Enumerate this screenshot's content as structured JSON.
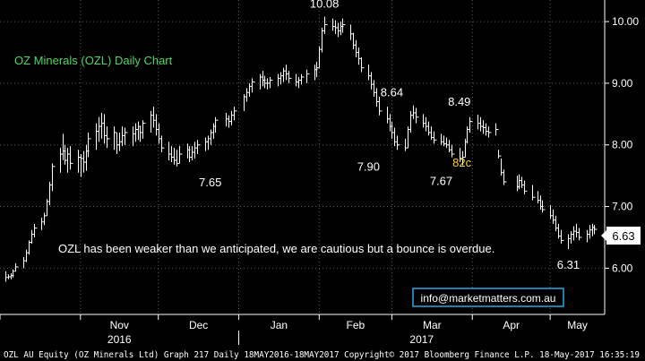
{
  "chart_data": {
    "type": "ohlc",
    "title": "OZ Minerals (OZL) Daily Chart",
    "annotation": "OZL has been weaker than we anticipated, we are cautious but a bounce is overdue.",
    "contact": "info@marketmatters.com.au",
    "footer": "OZL AU Equity (OZ Minerals Ltd) Graph 217  Daily 18MAY2016-18MAY2017 Copyright© 2017 Bloomberg Finance L.P. 18-May-2017 16:35:19",
    "last_price_label": "6.63",
    "ylim": [
      5.25,
      10.35
    ],
    "y_ticks": [
      6.0,
      7.0,
      8.0,
      9.0,
      10.0
    ],
    "y_tick_labels": [
      "6.00",
      "7.00",
      "8.00",
      "9.00",
      "10.00"
    ],
    "x_month_labels": [
      "Nov",
      "Dec",
      "Jan",
      "Feb",
      "Mar",
      "Apr",
      "May"
    ],
    "x_month_starts": [
      "2016-11-01",
      "2016-12-01",
      "2017-01-01",
      "2017-02-01",
      "2017-03-01",
      "2017-04-01",
      "2017-05-01"
    ],
    "x_year_labels": [
      "2016",
      "2017"
    ],
    "x_range": [
      "2016-10-01",
      "2017-05-22"
    ],
    "grid": true,
    "colors": {
      "bars": "#ffffff",
      "axis": "#ffffff",
      "title": "#4ed860",
      "gap_label": "#ffd21f",
      "price_box": "#ffffff",
      "contact_box": "#2aa8e0"
    },
    "price_labels": [
      {
        "text": "10.08",
        "date": "2017-02-03",
        "value": 10.08,
        "position": "above"
      },
      {
        "text": "8.64",
        "date": "2017-03-01",
        "value": 8.64,
        "position": "above"
      },
      {
        "text": "8.49",
        "date": "2017-03-27",
        "value": 8.49,
        "position": "above"
      },
      {
        "text": "7.65",
        "date": "2016-12-21",
        "value": 7.65,
        "position": "below"
      },
      {
        "text": "7.90",
        "date": "2017-02-20",
        "value": 7.9,
        "position": "below"
      },
      {
        "text": "7.67",
        "date": "2017-03-20",
        "value": 7.67,
        "position": "below"
      },
      {
        "text": "6.31",
        "date": "2017-05-08",
        "value": 6.31,
        "position": "below"
      },
      {
        "text": "82c",
        "date": "2017-03-28",
        "value": 7.72,
        "position": "gap"
      }
    ],
    "series": [
      {
        "values": [
          [
            "2016-10-03",
            5.78,
            5.95,
            5.85
          ],
          [
            "2016-10-04",
            5.82,
            5.9,
            5.86
          ],
          [
            "2016-10-05",
            5.82,
            5.92,
            5.88
          ],
          [
            "2016-10-06",
            5.85,
            5.98,
            5.95
          ],
          [
            "2016-10-07",
            5.95,
            6.08,
            6.02
          ],
          [
            "2016-10-10",
            6.0,
            6.18,
            6.12
          ],
          [
            "2016-10-11",
            6.1,
            6.3,
            6.25
          ],
          [
            "2016-10-12",
            6.22,
            6.45,
            6.42
          ],
          [
            "2016-10-13",
            6.4,
            6.62,
            6.55
          ],
          [
            "2016-10-14",
            6.5,
            6.72,
            6.65
          ],
          [
            "2016-10-17",
            6.62,
            6.82,
            6.75
          ],
          [
            "2016-10-18",
            6.7,
            6.9,
            6.85
          ],
          [
            "2016-10-19",
            6.85,
            7.12,
            7.08
          ],
          [
            "2016-10-20",
            7.02,
            7.4,
            7.35
          ],
          [
            "2016-10-21",
            7.25,
            7.7,
            7.65
          ],
          [
            "2016-10-24",
            7.55,
            7.95,
            7.85
          ],
          [
            "2016-10-25",
            7.75,
            8.18,
            7.9
          ],
          [
            "2016-10-26",
            7.68,
            8.0,
            7.75
          ],
          [
            "2016-10-27",
            7.55,
            7.95,
            7.85
          ],
          [
            "2016-10-28",
            7.6,
            7.98,
            7.7
          ],
          [
            "2016-10-31",
            7.55,
            7.92,
            7.8
          ],
          [
            "2016-11-01",
            7.48,
            7.85,
            7.78
          ],
          [
            "2016-11-02",
            7.55,
            7.9,
            7.72
          ],
          [
            "2016-11-03",
            7.58,
            8.0,
            7.9
          ],
          [
            "2016-11-04",
            7.8,
            8.2,
            8.1
          ],
          [
            "2016-11-07",
            7.92,
            8.35,
            8.22
          ],
          [
            "2016-11-08",
            8.05,
            8.45,
            8.3
          ],
          [
            "2016-11-09",
            8.1,
            8.52,
            8.35
          ],
          [
            "2016-11-10",
            8.02,
            8.5,
            8.15
          ],
          [
            "2016-11-11",
            7.95,
            8.3,
            8.1
          ],
          [
            "2016-11-14",
            7.92,
            8.3,
            8.2
          ],
          [
            "2016-11-15",
            7.85,
            8.2,
            8.0
          ],
          [
            "2016-11-16",
            7.9,
            8.2,
            8.05
          ],
          [
            "2016-11-17",
            7.98,
            8.3,
            8.15
          ],
          [
            "2016-11-18",
            8.0,
            8.28,
            8.2
          ],
          [
            "2016-11-21",
            7.98,
            8.3,
            8.18
          ],
          [
            "2016-11-22",
            8.05,
            8.35,
            8.25
          ],
          [
            "2016-11-23",
            8.08,
            8.38,
            8.3
          ],
          [
            "2016-11-24",
            8.05,
            8.3,
            8.2
          ],
          [
            "2016-11-25",
            8.1,
            8.4,
            8.35
          ],
          [
            "2016-11-28",
            8.2,
            8.55,
            8.48
          ],
          [
            "2016-11-29",
            8.28,
            8.62,
            8.4
          ],
          [
            "2016-11-30",
            8.15,
            8.5,
            8.25
          ],
          [
            "2016-12-01",
            8.02,
            8.35,
            8.1
          ],
          [
            "2016-12-02",
            7.88,
            8.15,
            7.95
          ],
          [
            "2016-12-05",
            7.75,
            8.05,
            7.85
          ],
          [
            "2016-12-06",
            7.72,
            7.98,
            7.8
          ],
          [
            "2016-12-07",
            7.68,
            7.95,
            7.75
          ],
          [
            "2016-12-08",
            7.65,
            7.92,
            7.7
          ],
          [
            "2016-12-09",
            7.7,
            7.98,
            7.85
          ],
          [
            "2016-12-12",
            7.78,
            8.02,
            7.92
          ],
          [
            "2016-12-13",
            7.72,
            7.98,
            7.8
          ],
          [
            "2016-12-14",
            7.75,
            7.98,
            7.88
          ],
          [
            "2016-12-15",
            7.78,
            8.05,
            7.95
          ],
          [
            "2016-12-16",
            7.85,
            8.08,
            8.0
          ],
          [
            "2016-12-19",
            7.9,
            8.12,
            8.05
          ],
          [
            "2016-12-20",
            7.92,
            8.15,
            8.1
          ],
          [
            "2016-12-21",
            8.0,
            8.25,
            8.2
          ],
          [
            "2016-12-22",
            8.1,
            8.35,
            8.3
          ],
          [
            "2016-12-23",
            8.2,
            8.45,
            8.4
          ],
          [
            "2016-12-27",
            8.3,
            8.52,
            8.42
          ],
          [
            "2016-12-28",
            8.28,
            8.48,
            8.38
          ],
          [
            "2016-12-29",
            8.32,
            8.55,
            8.48
          ],
          [
            "2016-12-30",
            8.4,
            8.62,
            8.55
          ],
          [
            "2017-01-03",
            8.55,
            8.82,
            8.78
          ],
          [
            "2017-01-04",
            8.7,
            8.92,
            8.85
          ],
          [
            "2017-01-05",
            8.78,
            9.0,
            8.95
          ],
          [
            "2017-01-06",
            8.85,
            9.08,
            9.02
          ],
          [
            "2017-01-09",
            8.9,
            9.15,
            9.1
          ],
          [
            "2017-01-10",
            8.95,
            9.2,
            9.05
          ],
          [
            "2017-01-11",
            8.92,
            9.12,
            9.0
          ],
          [
            "2017-01-12",
            8.9,
            9.08,
            9.0
          ],
          [
            "2017-01-13",
            8.92,
            9.1,
            9.05
          ],
          [
            "2017-01-16",
            8.95,
            9.15,
            9.08
          ],
          [
            "2017-01-17",
            8.98,
            9.18,
            9.12
          ],
          [
            "2017-01-18",
            9.02,
            9.25,
            9.2
          ],
          [
            "2017-01-19",
            9.05,
            9.3,
            9.15
          ],
          [
            "2017-01-20",
            9.0,
            9.2,
            9.08
          ],
          [
            "2017-01-23",
            8.95,
            9.15,
            9.02
          ],
          [
            "2017-01-24",
            8.92,
            9.1,
            9.05
          ],
          [
            "2017-01-25",
            8.98,
            9.15,
            9.1
          ],
          [
            "2017-01-27",
            9.0,
            9.22,
            9.15
          ],
          [
            "2017-01-30",
            9.05,
            9.3,
            9.22
          ],
          [
            "2017-01-31",
            9.1,
            9.35,
            9.25
          ],
          [
            "2017-02-01",
            9.25,
            9.6,
            9.55
          ],
          [
            "2017-02-02",
            9.5,
            9.9,
            9.85
          ],
          [
            "2017-02-03",
            9.8,
            10.08,
            9.95
          ],
          [
            "2017-02-06",
            9.85,
            10.05,
            9.92
          ],
          [
            "2017-02-07",
            9.8,
            10.02,
            9.9
          ],
          [
            "2017-02-08",
            9.75,
            9.98,
            9.85
          ],
          [
            "2017-02-09",
            9.78,
            10.0,
            9.92
          ],
          [
            "2017-02-10",
            9.82,
            10.05,
            9.95
          ],
          [
            "2017-02-13",
            9.7,
            9.95,
            9.8
          ],
          [
            "2017-02-14",
            9.55,
            9.82,
            9.62
          ],
          [
            "2017-02-15",
            9.42,
            9.7,
            9.5
          ],
          [
            "2017-02-16",
            9.3,
            9.58,
            9.4
          ],
          [
            "2017-02-17",
            9.18,
            9.42,
            9.25
          ],
          [
            "2017-02-20",
            9.05,
            9.3,
            9.12
          ],
          [
            "2017-02-21",
            8.9,
            9.18,
            8.98
          ],
          [
            "2017-02-22",
            8.78,
            9.05,
            8.85
          ],
          [
            "2017-02-23",
            8.62,
            8.92,
            8.7
          ],
          [
            "2017-02-24",
            8.48,
            8.78,
            8.55
          ],
          [
            "2017-02-27",
            8.35,
            8.62,
            8.42
          ],
          [
            "2017-02-28",
            8.22,
            8.5,
            8.3
          ],
          [
            "2017-03-01",
            8.1,
            8.38,
            8.2
          ],
          [
            "2017-03-02",
            7.98,
            8.28,
            8.05
          ],
          [
            "2017-03-03",
            7.92,
            8.15,
            8.0
          ],
          [
            "2017-03-06",
            7.9,
            8.1,
            7.95
          ],
          [
            "2017-03-07",
            7.95,
            8.3,
            8.25
          ],
          [
            "2017-03-08",
            8.2,
            8.55,
            8.48
          ],
          [
            "2017-03-09",
            8.42,
            8.64,
            8.52
          ],
          [
            "2017-03-10",
            8.35,
            8.6,
            8.45
          ],
          [
            "2017-03-13",
            8.28,
            8.5,
            8.35
          ],
          [
            "2017-03-14",
            8.22,
            8.45,
            8.3
          ],
          [
            "2017-03-15",
            8.15,
            8.38,
            8.2
          ],
          [
            "2017-03-16",
            8.08,
            8.3,
            8.12
          ],
          [
            "2017-03-17",
            8.02,
            8.22,
            8.08
          ],
          [
            "2017-03-20",
            8.0,
            8.18,
            8.05
          ],
          [
            "2017-03-21",
            7.98,
            8.15,
            8.02
          ],
          [
            "2017-03-22",
            7.95,
            8.12,
            8.0
          ],
          [
            "2017-03-23",
            7.88,
            8.08,
            7.92
          ],
          [
            "2017-03-24",
            7.8,
            8.0,
            7.85
          ],
          [
            "2017-03-27",
            7.72,
            7.95,
            7.78
          ],
          [
            "2017-03-28",
            7.67,
            7.9,
            7.8
          ],
          [
            "2017-03-29",
            7.8,
            8.1,
            8.05
          ],
          [
            "2017-03-30",
            8.02,
            8.3,
            8.25
          ],
          [
            "2017-03-31",
            8.2,
            8.45,
            8.38
          ],
          [
            "2017-04-03",
            8.25,
            8.49,
            8.35
          ],
          [
            "2017-04-04",
            8.22,
            8.45,
            8.3
          ],
          [
            "2017-04-05",
            8.18,
            8.4,
            8.28
          ],
          [
            "2017-04-06",
            8.15,
            8.35,
            8.22
          ],
          [
            "2017-04-07",
            8.12,
            8.3,
            8.2
          ],
          [
            "2017-04-10",
            8.15,
            8.35,
            8.25
          ],
          [
            "2017-04-11",
            7.78,
            7.92,
            7.82
          ],
          [
            "2017-04-12",
            7.5,
            7.78,
            7.55
          ],
          [
            "2017-04-13",
            7.35,
            7.6,
            7.4
          ],
          [
            "2017-04-18",
            7.25,
            7.5,
            7.32
          ],
          [
            "2017-04-19",
            7.28,
            7.52,
            7.42
          ],
          [
            "2017-04-20",
            7.3,
            7.48,
            7.35
          ],
          [
            "2017-04-21",
            7.2,
            7.42,
            7.25
          ],
          [
            "2017-04-24",
            7.1,
            7.35,
            7.15
          ],
          [
            "2017-04-26",
            7.05,
            7.25,
            7.1
          ],
          [
            "2017-04-27",
            6.95,
            7.18,
            7.0
          ],
          [
            "2017-04-28",
            6.9,
            7.1,
            6.95
          ],
          [
            "2017-05-01",
            6.8,
            7.02,
            6.85
          ],
          [
            "2017-05-02",
            6.72,
            6.95,
            6.78
          ],
          [
            "2017-05-03",
            6.6,
            6.85,
            6.65
          ],
          [
            "2017-05-04",
            6.48,
            6.72,
            6.52
          ],
          [
            "2017-05-05",
            6.4,
            6.62,
            6.45
          ],
          [
            "2017-05-08",
            6.31,
            6.55,
            6.48
          ],
          [
            "2017-05-09",
            6.4,
            6.6,
            6.55
          ],
          [
            "2017-05-10",
            6.45,
            6.68,
            6.6
          ],
          [
            "2017-05-11",
            6.5,
            6.72,
            6.58
          ],
          [
            "2017-05-12",
            6.45,
            6.65,
            6.5
          ],
          [
            "2017-05-15",
            6.42,
            6.62,
            6.55
          ],
          [
            "2017-05-16",
            6.48,
            6.7,
            6.62
          ],
          [
            "2017-05-17",
            6.52,
            6.72,
            6.66
          ],
          [
            "2017-05-18",
            6.55,
            6.7,
            6.63
          ]
        ]
      }
    ]
  }
}
